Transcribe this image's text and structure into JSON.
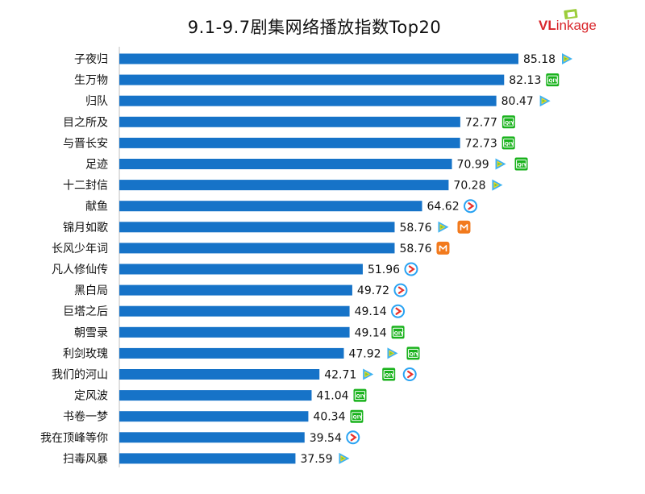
{
  "brand": {
    "v": "V",
    "l": "L",
    "rest": "inkage"
  },
  "colors": {
    "bar": "#1673c8",
    "iqiyi": "#19b21c",
    "tencent": "#3fb3f0",
    "youku": "#2aa3f2",
    "mango": "#f27a1d"
  },
  "chart_data": {
    "type": "bar",
    "orientation": "horizontal",
    "title": "9.1-9.7剧集网络播放指数Top20",
    "categories": [
      "子夜归",
      "生万物",
      "归队",
      "目之所及",
      "与晋长安",
      "足迹",
      "十二封信",
      "献鱼",
      "锦月如歌",
      "长风少年词",
      "凡人修仙传",
      "黑白局",
      "巨塔之后",
      "朝雪录",
      "利剑玫瑰",
      "我们的河山",
      "定风波",
      "书卷一梦",
      "我在顶峰等你",
      "扫毒风暴"
    ],
    "values": [
      85.18,
      82.13,
      80.47,
      72.77,
      72.73,
      70.99,
      70.28,
      64.62,
      58.76,
      58.76,
      51.96,
      49.72,
      49.14,
      49.14,
      47.92,
      42.71,
      41.04,
      40.34,
      39.54,
      37.59
    ],
    "value_labels": [
      "85.18",
      "82.13",
      "80.47",
      "72.77",
      "72.73",
      "70.99",
      "70.28",
      "64.62",
      "58.76",
      "58.76",
      "51.96",
      "49.72",
      "49.14",
      "49.14",
      "47.92",
      "42.71",
      "41.04",
      "40.34",
      "39.54",
      "37.59"
    ],
    "platforms": [
      [
        "tencent"
      ],
      [
        "iqiyi"
      ],
      [
        "tencent"
      ],
      [
        "iqiyi"
      ],
      [
        "iqiyi"
      ],
      [
        "tencent",
        "iqiyi"
      ],
      [
        "tencent"
      ],
      [
        "youku"
      ],
      [
        "tencent",
        "mango"
      ],
      [
        "mango"
      ],
      [
        "youku"
      ],
      [
        "youku"
      ],
      [
        "youku"
      ],
      [
        "iqiyi"
      ],
      [
        "tencent",
        "iqiyi"
      ],
      [
        "tencent",
        "iqiyi",
        "youku"
      ],
      [
        "iqiyi"
      ],
      [
        "iqiyi"
      ],
      [
        "youku"
      ],
      [
        "tencent"
      ]
    ],
    "platform_label": {
      "iqiyi": "iQIY"
    },
    "xlim": [
      0,
      85.18
    ],
    "grid": false,
    "legend": "none"
  }
}
